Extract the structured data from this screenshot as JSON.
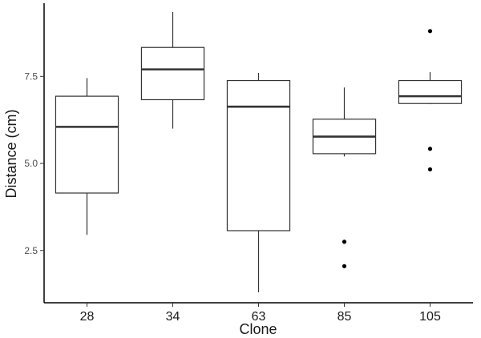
{
  "chart_data": {
    "type": "box",
    "xlabel": "Clone",
    "ylabel": "Distance (cm)",
    "ylim": [
      1.0,
      9.6
    ],
    "yticks": [
      2.5,
      5.0,
      7.5
    ],
    "ytick_labels": [
      "2.5",
      "5.0",
      "7.5"
    ],
    "grid": false,
    "groups": [
      {
        "name": "28",
        "whisker_low": 2.95,
        "q1": 4.15,
        "median": 6.05,
        "q3": 6.93,
        "whisker_high": 7.45,
        "outliers": []
      },
      {
        "name": "34",
        "whisker_low": 6.0,
        "q1": 6.83,
        "median": 7.7,
        "q3": 8.33,
        "whisker_high": 9.35,
        "outliers": []
      },
      {
        "name": "63",
        "whisker_low": 1.3,
        "q1": 3.07,
        "median": 6.63,
        "q3": 7.38,
        "whisker_high": 7.6,
        "outliers": []
      },
      {
        "name": "85",
        "whisker_low": 5.2,
        "q1": 5.28,
        "median": 5.77,
        "q3": 6.27,
        "whisker_high": 7.18,
        "outliers": [
          2.75,
          2.05
        ]
      },
      {
        "name": "105",
        "whisker_low": 6.7,
        "q1": 6.72,
        "median": 6.93,
        "q3": 7.38,
        "whisker_high": 7.62,
        "outliers": [
          8.8,
          5.42,
          4.83
        ]
      }
    ]
  }
}
